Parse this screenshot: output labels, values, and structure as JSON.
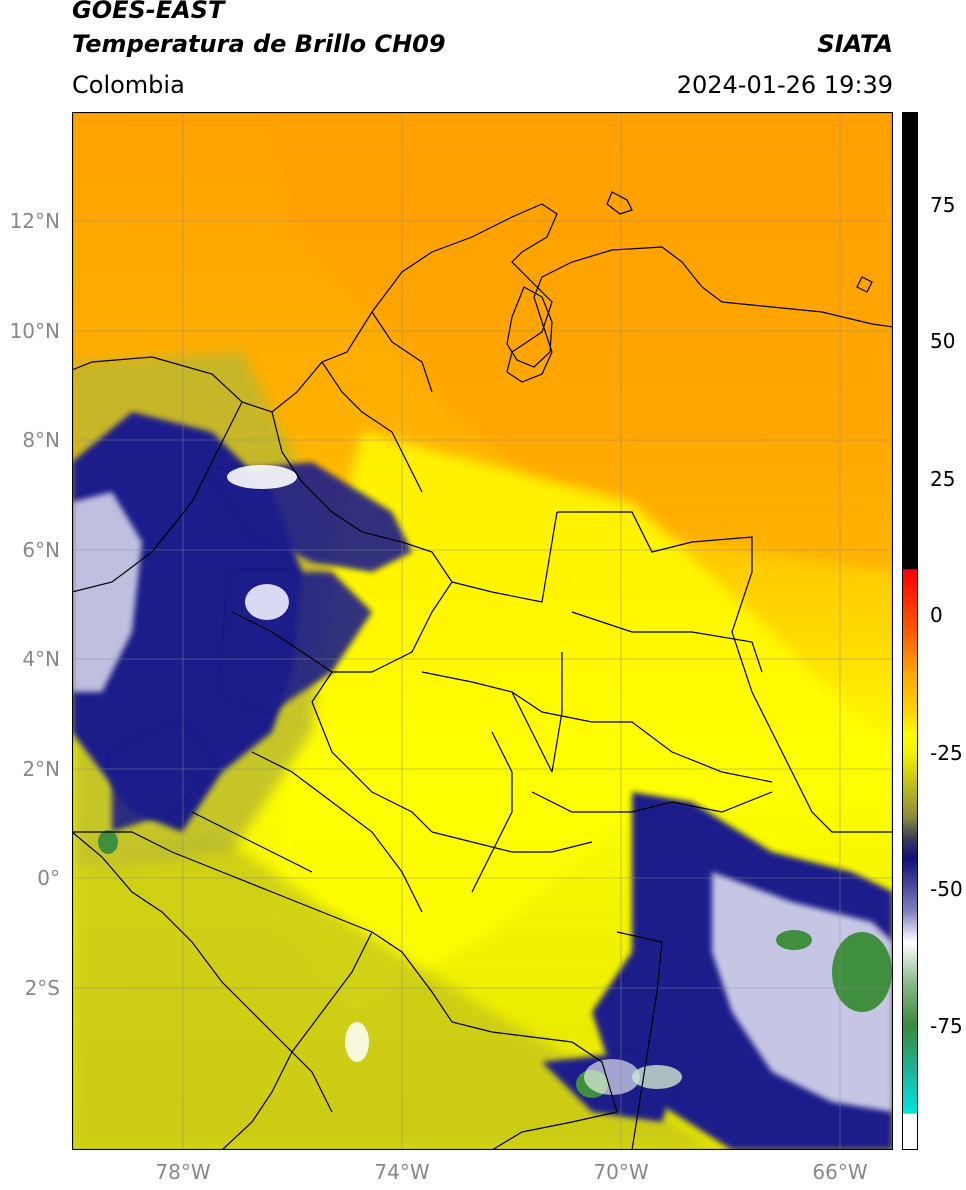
{
  "header": {
    "satellite": "GOES-EAST",
    "product": "Temperatura de Brillo CH09",
    "brand": "SIATA",
    "region": "Colombia",
    "datetime": "2024-01-26 19:39"
  },
  "axes": {
    "lat_ticks": [
      "12°N",
      "10°N",
      "8°N",
      "6°N",
      "4°N",
      "2°N",
      "0°",
      "2°S"
    ],
    "lon_ticks": [
      "78°W",
      "74°W",
      "70°W",
      "66°W"
    ]
  },
  "colorbar": {
    "tick_labels": [
      "75",
      "50",
      "25",
      "0",
      "-25",
      "-50",
      "-75"
    ],
    "colors": {
      "black": "#000000",
      "red": "#ff1a00",
      "orange": "#ffa500",
      "yellow": "#ffff00",
      "olive": "#8a8a3a",
      "navy": "#10107a",
      "white": "#ffffff",
      "green": "#3a8a3a",
      "cyan": "#00e5e5"
    }
  },
  "map_colors": {
    "warm": "#ffa200",
    "mid": "#ffd000",
    "yellow": "#ffff00",
    "olive": "#c8c820",
    "navy": "#1a1a8a",
    "cold": "#e8e8f4",
    "green": "#3f8f3f"
  }
}
